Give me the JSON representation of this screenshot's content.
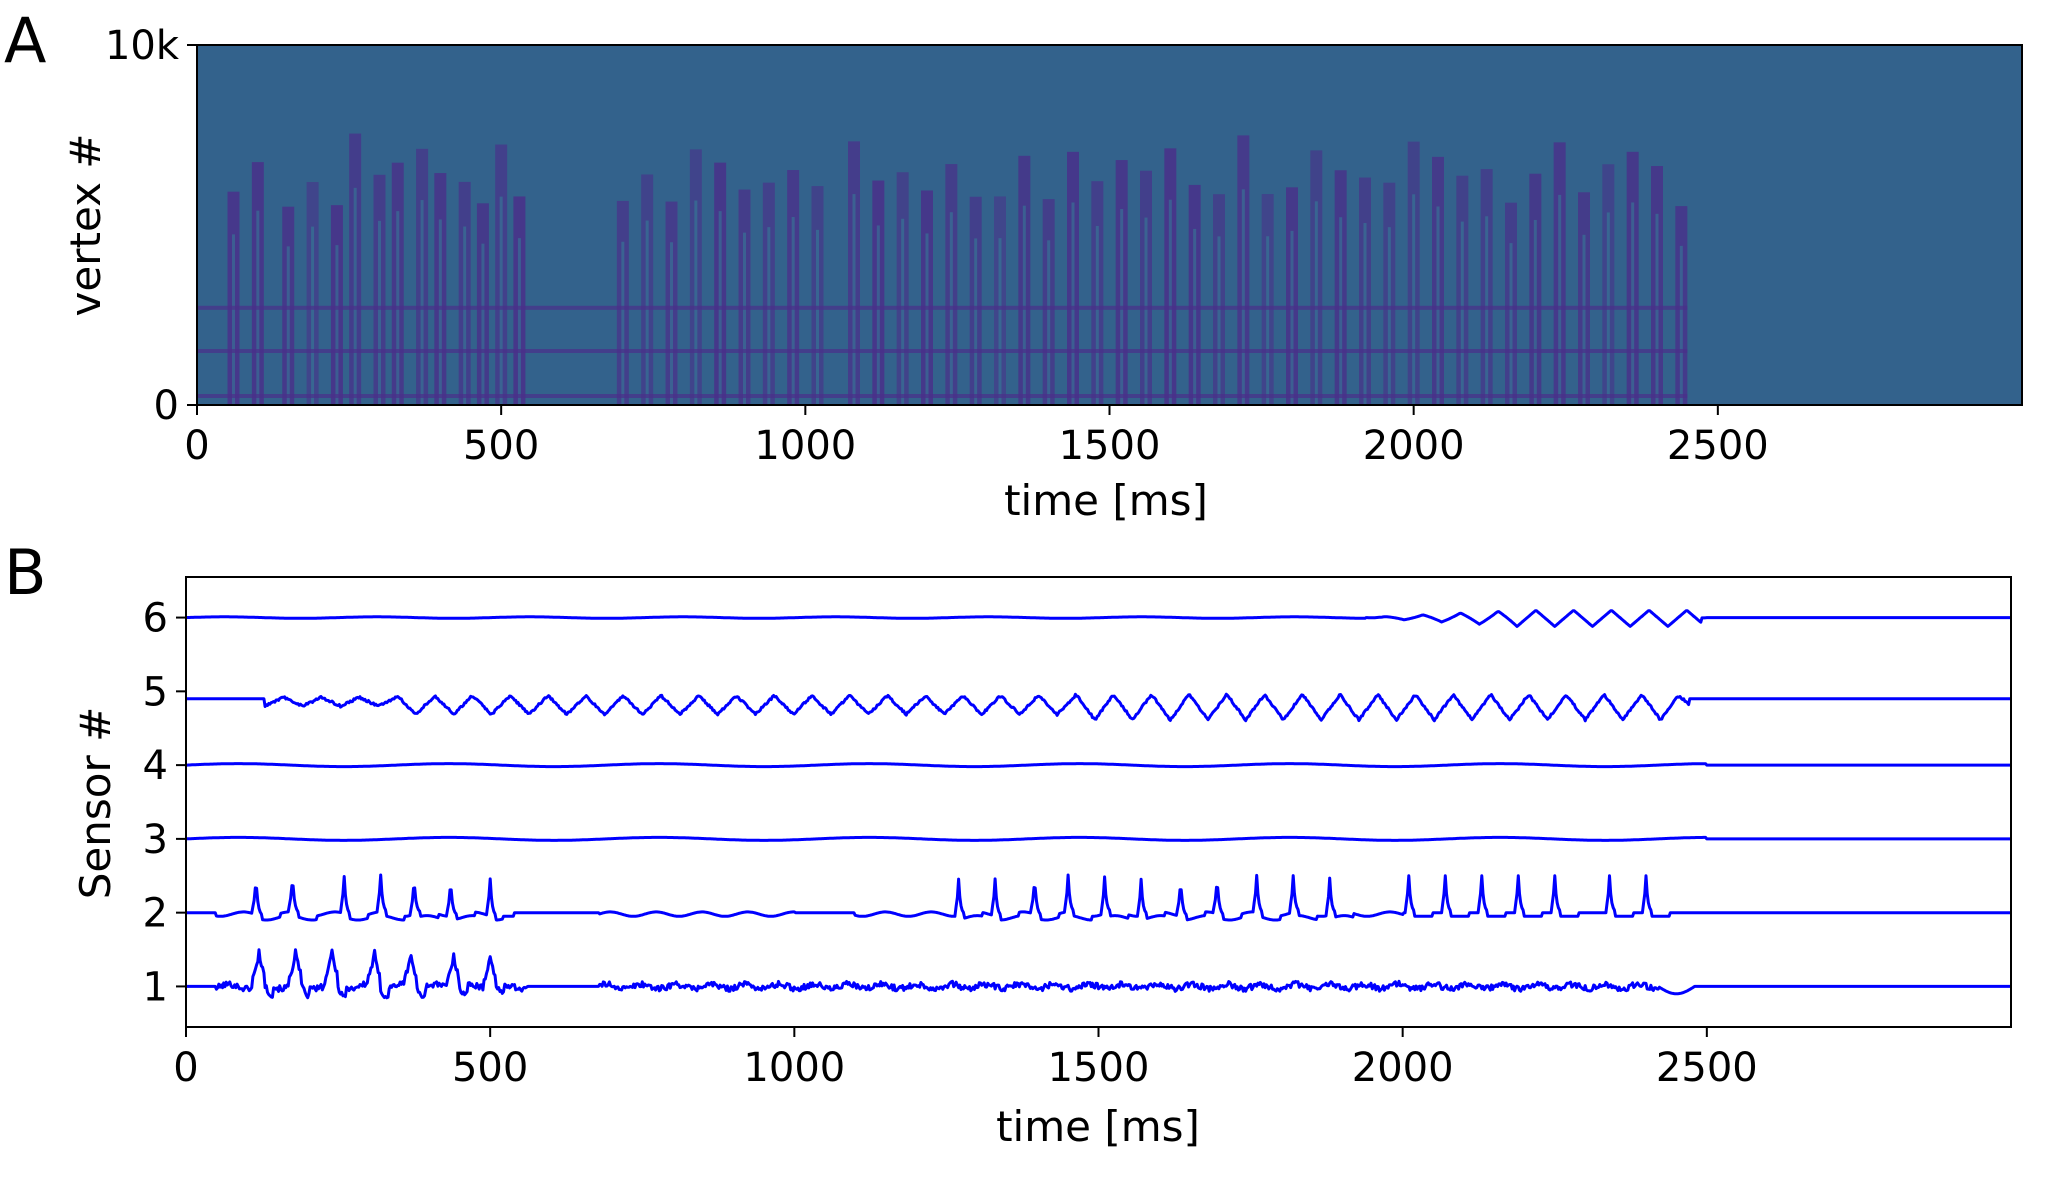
{
  "panels": {
    "a": {
      "letter": "A"
    },
    "b": {
      "letter": "B"
    }
  },
  "chart_data": [
    {
      "type": "heatmap",
      "panel": "A",
      "xlabel": "time [ms]",
      "ylabel": "vertex #",
      "xlim": [
        0,
        3000
      ],
      "ylim": [
        0,
        10000
      ],
      "x_ticks": [
        0,
        500,
        1000,
        1500,
        2000,
        2500
      ],
      "x_tick_labels": [
        "0",
        "500",
        "1000",
        "1500",
        "2000",
        "2500"
      ],
      "y_ticks": [
        0,
        10000
      ],
      "y_tick_labels": [
        "0",
        "10k"
      ],
      "background_color": "#33628C",
      "activity_color": "#4A2F8A",
      "highlight_color": "#2BA6A0",
      "activity_end_ms": 2450,
      "burst_times_ms": [
        60,
        100,
        150,
        190,
        230,
        260,
        300,
        330,
        370,
        400,
        440,
        470,
        500,
        530,
        700,
        740,
        780,
        820,
        860,
        900,
        940,
        980,
        1020,
        1080,
        1120,
        1160,
        1200,
        1240,
        1280,
        1320,
        1360,
        1400,
        1440,
        1480,
        1520,
        1560,
        1600,
        1640,
        1680,
        1720,
        1760,
        1800,
        1840,
        1880,
        1920,
        1960,
        2000,
        2040,
        2080,
        2120,
        2160,
        2200,
        2240,
        2280,
        2320,
        2360,
        2400,
        2440
      ],
      "band_vertices": [
        250,
        1500,
        2700
      ]
    },
    {
      "type": "line",
      "panel": "B",
      "xlabel": "time [ms]",
      "ylabel": "Sensor #",
      "xlim": [
        0,
        3000
      ],
      "ylim": [
        0.45,
        6.55
      ],
      "x_ticks": [
        0,
        500,
        1000,
        1500,
        2000,
        2500
      ],
      "x_tick_labels": [
        "0",
        "500",
        "1000",
        "1500",
        "2000",
        "2500"
      ],
      "y_ticks": [
        1,
        2,
        3,
        4,
        5,
        6
      ],
      "y_tick_labels": [
        "1",
        "2",
        "3",
        "4",
        "5",
        "6"
      ],
      "line_color": "#0000FF",
      "series": [
        {
          "sensor": 1,
          "baseline": 1.0,
          "active_ranges_ms": [
            [
              50,
              560
            ],
            [
              680,
              2420
            ]
          ],
          "spike_times_ms": [
            120,
            180,
            240,
            310,
            370,
            440,
            500
          ],
          "post_dip": [
            2440,
            -0.1
          ]
        },
        {
          "sensor": 2,
          "baseline": 2.0,
          "spike_times_ms": [
            115,
            175,
            260,
            320,
            375,
            435,
            500,
            1270,
            1330,
            1395,
            1450,
            1510,
            1570,
            1635,
            1695,
            1760,
            1820,
            1880,
            2010,
            2070,
            2130,
            2190,
            2250,
            2340,
            2400
          ],
          "bump_ranges_ms": [
            [
              50,
              520
            ],
            [
              680,
              1000
            ],
            [
              1100,
              2000
            ]
          ]
        },
        {
          "sensor": 3,
          "baseline": 3.0,
          "wiggle_amplitude": 0.02
        },
        {
          "sensor": 4,
          "baseline": 4.0,
          "wiggle_amplitude": 0.02
        },
        {
          "sensor": 5,
          "baseline": 4.9,
          "active_ranges_ms": [
            [
              130,
              2470
            ]
          ],
          "oscillation_period_ms": 62,
          "amplitude": 0.3,
          "late_baseline": 4.9
        },
        {
          "sensor": 6,
          "baseline": 6.0,
          "active_ranges_ms": [
            [
              1940,
              2490
            ]
          ],
          "oscillation_period_ms": 62,
          "amplitude": 0.22
        }
      ]
    }
  ]
}
